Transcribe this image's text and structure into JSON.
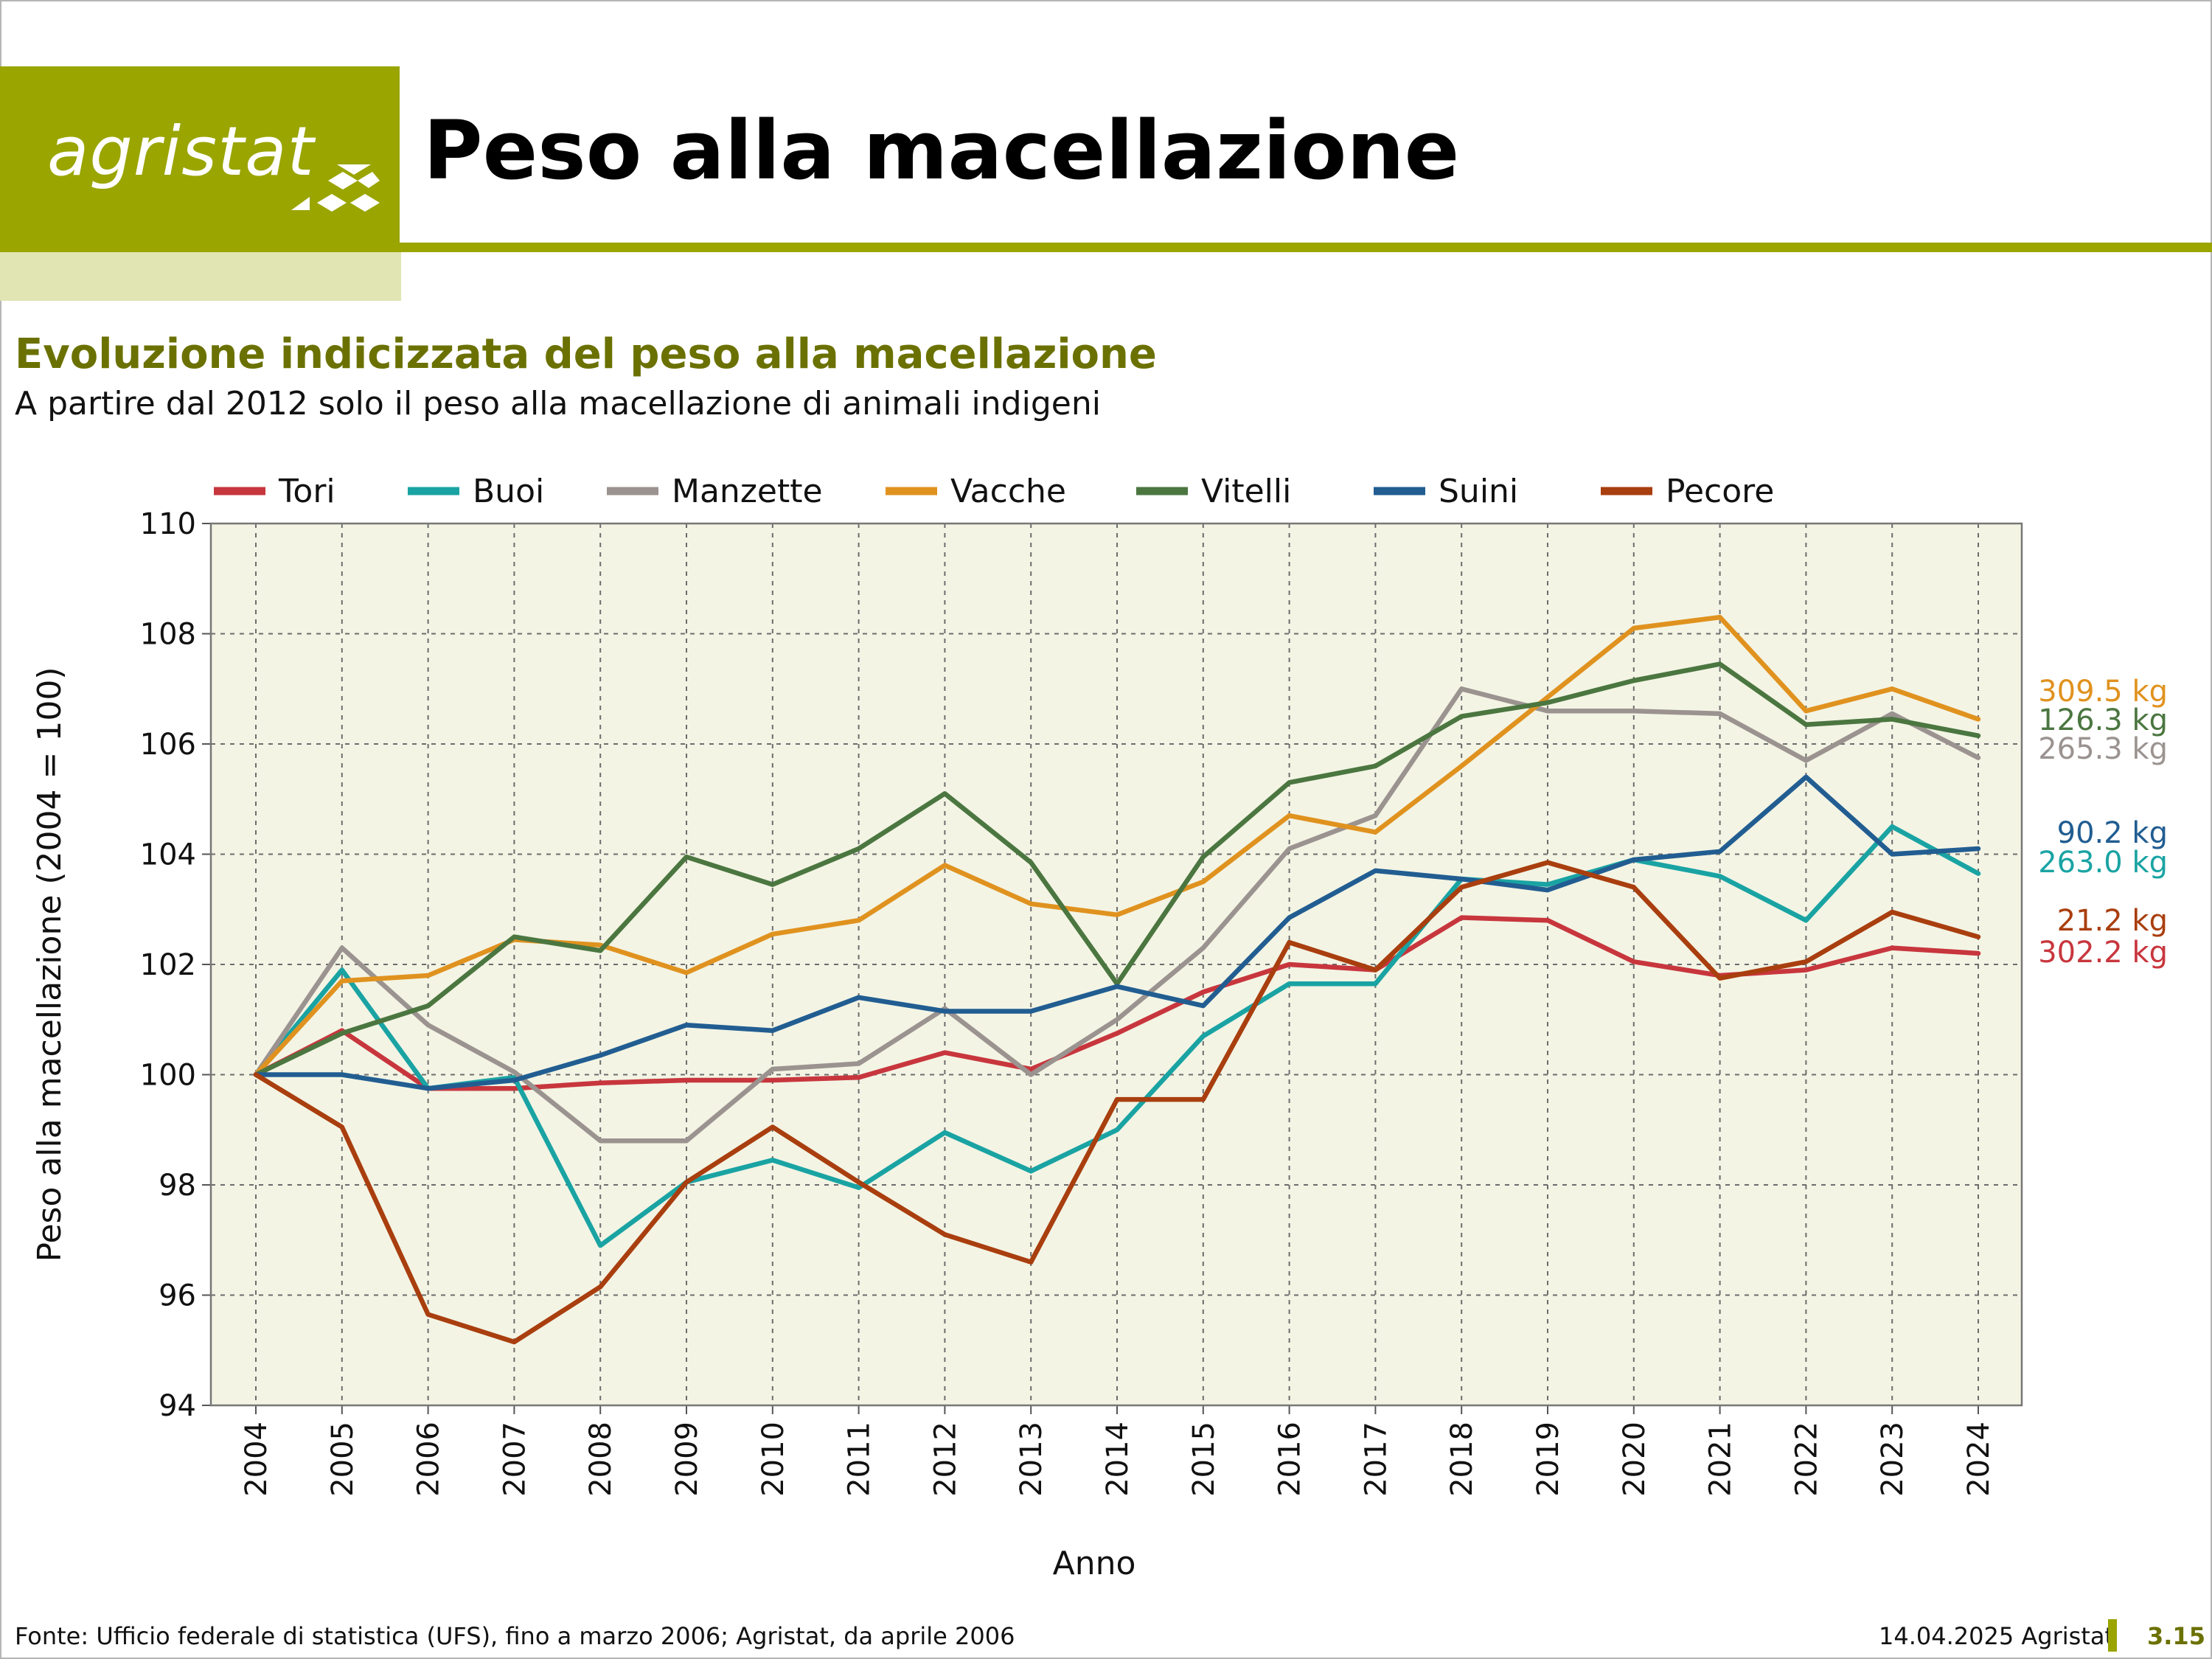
{
  "header": {
    "logo_text": "agristat",
    "title": "Peso alla macellazione",
    "brand_color": "#9aa500",
    "brand_light": "#e1e5b4"
  },
  "subtitle": "Evoluzione indicizzata del peso alla macellazione",
  "note": "A partire dal 2012 solo il peso alla macellazione di animali indigeni",
  "footer": {
    "source": "Fonte: Ufficio federale di statistica (UFS), fino a marzo 2006; Agristat, da aprile 2006",
    "date": "14.04.2025 Agristat",
    "page": "3.15"
  },
  "chart_data": {
    "type": "line",
    "xlabel": "Anno",
    "ylabel": "Peso alla macellazione (2004 = 100)",
    "ylim": [
      94,
      110
    ],
    "yticks": [
      94,
      96,
      98,
      100,
      102,
      104,
      106,
      108,
      110
    ],
    "grid": true,
    "legend_position": "top",
    "plot_background": "#f3f4e4",
    "x": [
      "2004",
      "2005",
      "2006",
      "2007",
      "2008",
      "2009",
      "2010",
      "2011",
      "2012",
      "2013",
      "2014",
      "2015",
      "2016",
      "2017",
      "2018",
      "2019",
      "2020",
      "2021",
      "2022",
      "2023",
      "2024"
    ],
    "series": [
      {
        "name": "Tori",
        "color": "#c8363d",
        "end_label": "302.2 kg",
        "values": [
          100,
          100.8,
          99.75,
          99.75,
          99.85,
          99.9,
          99.9,
          99.95,
          100.4,
          100.1,
          100.75,
          101.5,
          102,
          101.9,
          102.85,
          102.8,
          102.05,
          101.8,
          101.9,
          102.3,
          102.2
        ]
      },
      {
        "name": "Buoi",
        "color": "#1aa3a3",
        "end_label": "263.0 kg",
        "values": [
          100,
          101.9,
          99.75,
          99.95,
          96.9,
          98.05,
          98.45,
          97.95,
          98.95,
          98.25,
          99,
          100.7,
          101.65,
          101.65,
          103.55,
          103.45,
          103.9,
          103.6,
          102.8,
          104.5,
          103.65
        ]
      },
      {
        "name": "Manzette",
        "color": "#9b9390",
        "end_label": "265.3 kg",
        "values": [
          100,
          102.3,
          100.9,
          100.05,
          98.8,
          98.8,
          100.1,
          100.2,
          101.2,
          100,
          101,
          102.3,
          104.1,
          104.7,
          107,
          106.6,
          106.6,
          106.55,
          105.7,
          106.55,
          105.75
        ]
      },
      {
        "name": "Vacche",
        "color": "#e0921f",
        "end_label": "309.5 kg",
        "values": [
          100,
          101.7,
          101.8,
          102.45,
          102.35,
          101.85,
          102.55,
          102.8,
          103.8,
          103.1,
          102.9,
          103.5,
          104.7,
          104.4,
          105.6,
          106.85,
          108.1,
          108.3,
          106.6,
          107,
          106.45
        ]
      },
      {
        "name": "Vitelli",
        "color": "#4b7640",
        "end_label": "126.3 kg",
        "values": [
          100,
          100.75,
          101.25,
          102.5,
          102.25,
          103.95,
          103.45,
          104.1,
          105.1,
          103.85,
          101.65,
          103.95,
          105.3,
          105.6,
          106.5,
          106.75,
          107.15,
          107.45,
          106.35,
          106.45,
          106.15
        ]
      },
      {
        "name": "Suini",
        "color": "#215d91",
        "end_label": "90.2 kg",
        "values": [
          100,
          100,
          99.75,
          99.9,
          100.35,
          100.9,
          100.8,
          101.4,
          101.15,
          101.15,
          101.6,
          101.25,
          102.85,
          103.7,
          103.55,
          103.35,
          103.9,
          104.05,
          105.4,
          104,
          104.1
        ]
      },
      {
        "name": "Pecore",
        "color": "#a93e0e",
        "end_label": "21.2 kg",
        "values": [
          100,
          99.05,
          95.65,
          95.15,
          96.15,
          98.05,
          99.05,
          98.05,
          97.1,
          96.6,
          99.55,
          99.55,
          102.4,
          101.9,
          103.4,
          103.85,
          103.4,
          101.75,
          102.05,
          102.95,
          102.5
        ]
      }
    ]
  }
}
